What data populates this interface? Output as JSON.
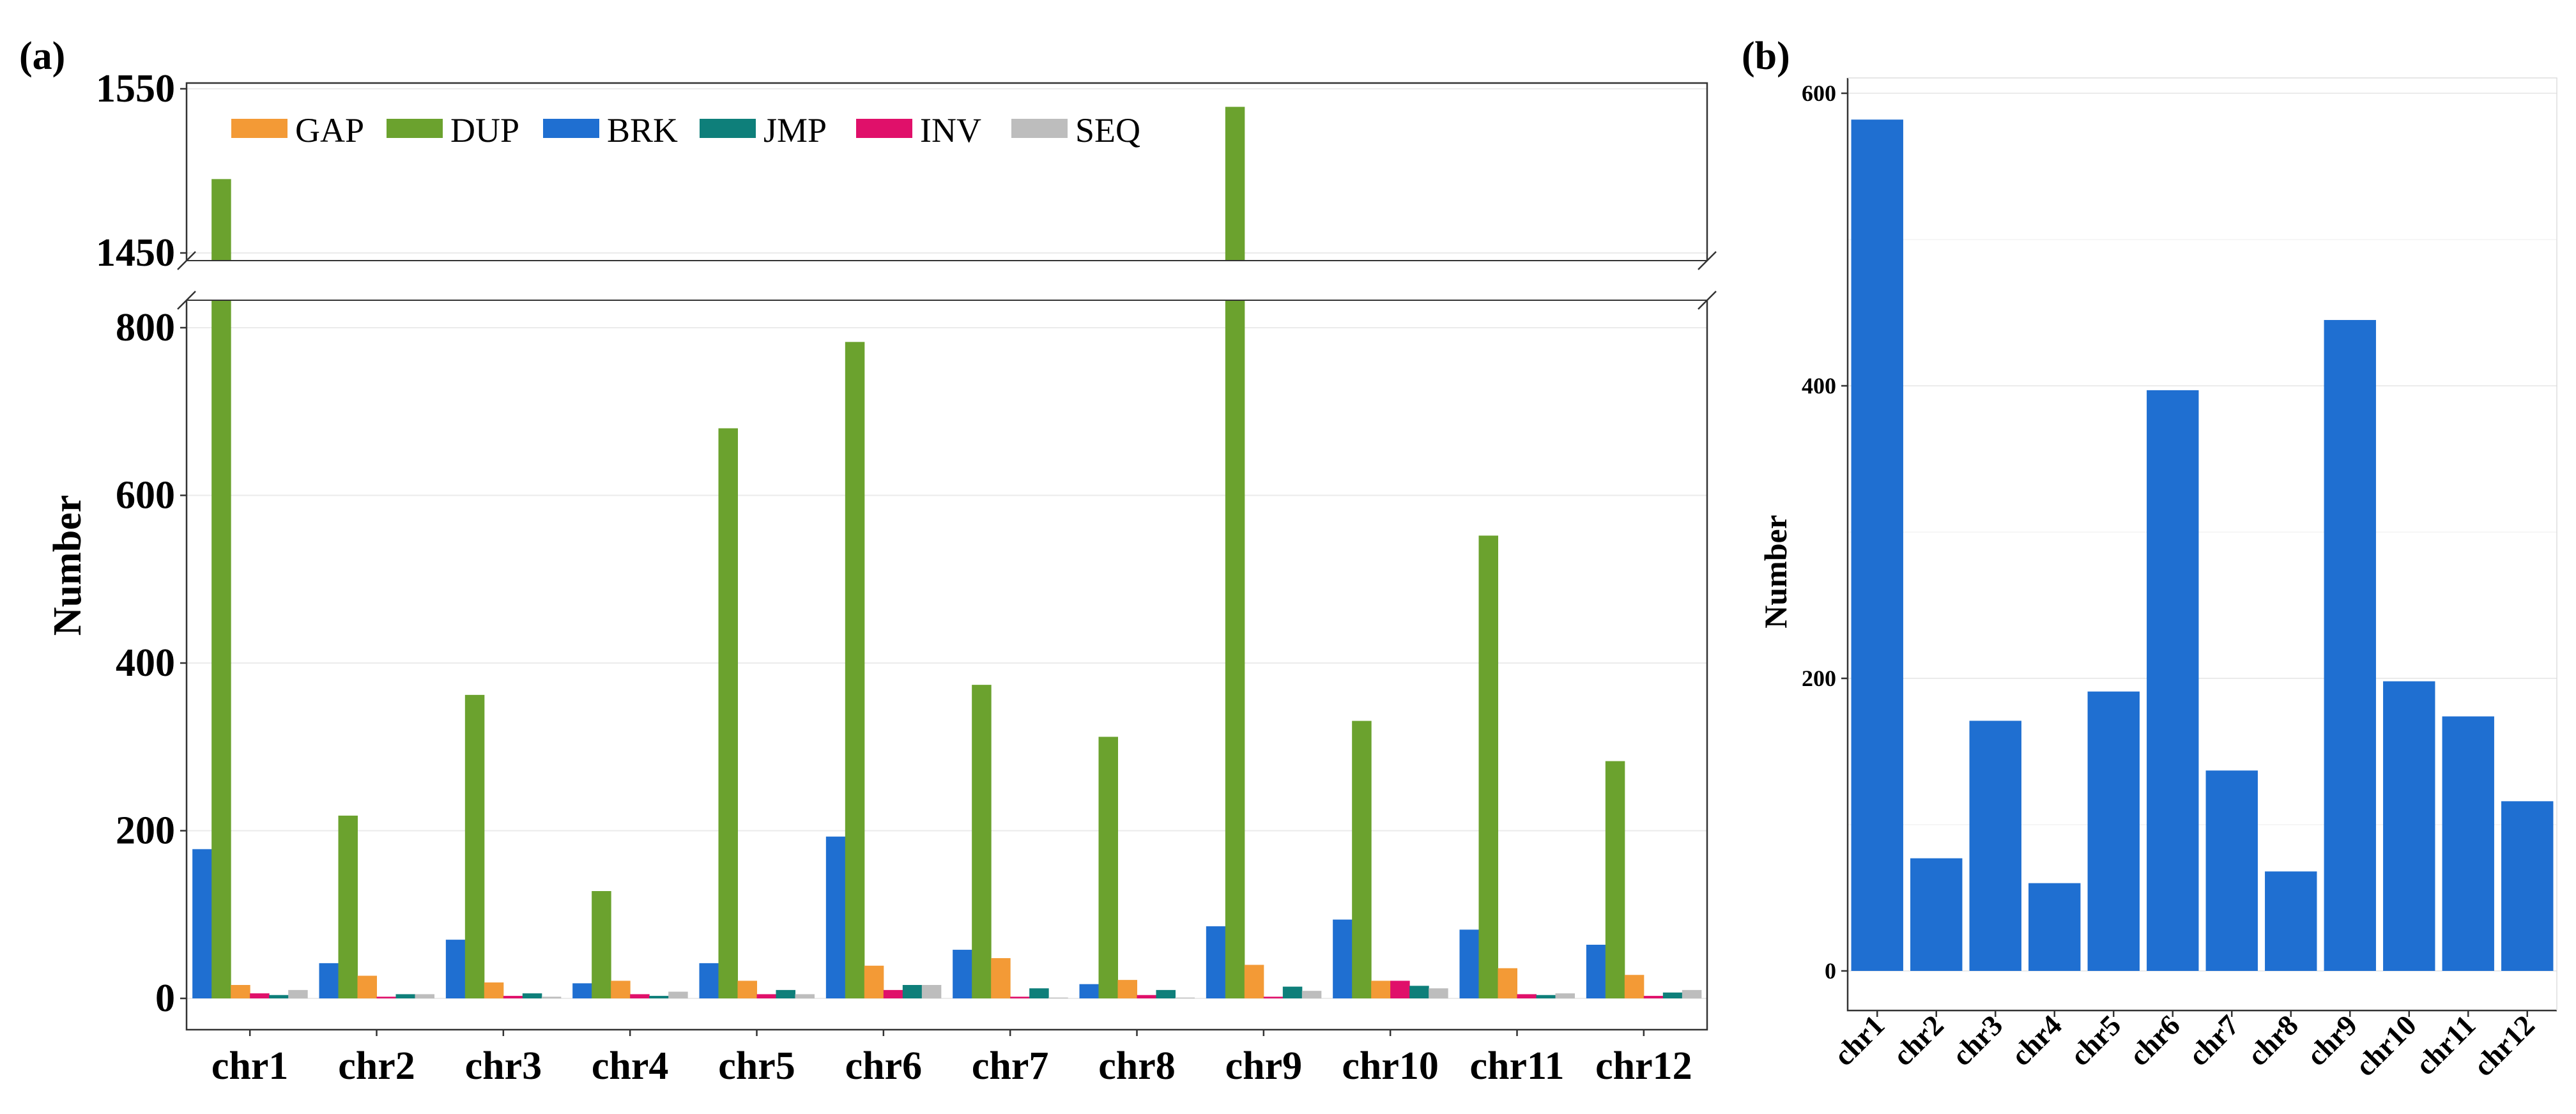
{
  "colors": {
    "GAP": "#F39A36",
    "DUP": "#6BA22E",
    "BRK": "#1F6FD1",
    "JMP": "#0E7F7A",
    "INV": "#E0106A",
    "SEQ": "#BDBDBD",
    "panel_b_bar": "#1F6FD1",
    "grid": "#EBEBEB",
    "axis": "#333333"
  },
  "chart_data": [
    {
      "panel": "(a)",
      "type": "bar",
      "title": "",
      "xlabel": "",
      "ylabel": "Number",
      "categories": [
        "chr1",
        "chr2",
        "chr3",
        "chr4",
        "chr5",
        "chr6",
        "chr7",
        "chr8",
        "chr9",
        "chr10",
        "chr11",
        "chr12"
      ],
      "legend": [
        "GAP",
        "DUP",
        "BRK",
        "JMP",
        "INV",
        "SEQ"
      ],
      "legend_position": "top-left",
      "bar_order": [
        "BRK",
        "DUP",
        "GAP",
        "INV",
        "JMP",
        "SEQ"
      ],
      "series": [
        {
          "name": "BRK",
          "values": [
            178,
            42,
            70,
            18,
            42,
            193,
            58,
            17,
            86,
            94,
            82,
            64
          ]
        },
        {
          "name": "DUP",
          "values": [
            1495,
            218,
            362,
            128,
            680,
            783,
            374,
            312,
            1539,
            331,
            552,
            283
          ]
        },
        {
          "name": "GAP",
          "values": [
            16,
            27,
            19,
            21,
            21,
            39,
            48,
            22,
            40,
            21,
            36,
            28
          ]
        },
        {
          "name": "INV",
          "values": [
            6,
            2,
            3,
            5,
            5,
            10,
            2,
            4,
            2,
            21,
            5,
            3
          ]
        },
        {
          "name": "JMP",
          "values": [
            4,
            5,
            6,
            3,
            10,
            16,
            12,
            10,
            14,
            15,
            4,
            7
          ]
        },
        {
          "name": "SEQ",
          "values": [
            10,
            5,
            2,
            8,
            5,
            16,
            1,
            1,
            9,
            12,
            6,
            10
          ]
        }
      ],
      "axis_break": {
        "lower_range": [
          0,
          800
        ],
        "upper_range": [
          1450,
          1550
        ]
      },
      "lower_ticks": [
        "0",
        "200",
        "400",
        "600",
        "800"
      ],
      "upper_ticks": [
        "1450",
        "1550"
      ],
      "grid": true
    },
    {
      "panel": "(b)",
      "type": "bar",
      "title": "",
      "xlabel": "",
      "ylabel": "Number",
      "categories": [
        "chr1",
        "chr2",
        "chr3",
        "chr4",
        "chr5",
        "chr6",
        "chr7",
        "chr8",
        "chr9",
        "chr10",
        "chr11",
        "chr12"
      ],
      "values": [
        582,
        77,
        171,
        60,
        191,
        397,
        137,
        68,
        445,
        198,
        174,
        116
      ],
      "ylim": [
        0,
        600
      ],
      "yticks": [
        "0",
        "200",
        "400",
        "600"
      ],
      "grid": true
    }
  ]
}
